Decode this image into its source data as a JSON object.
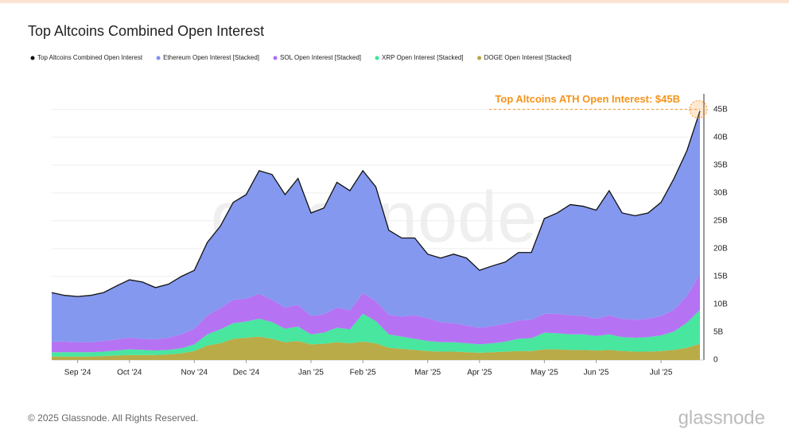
{
  "chart_data": {
    "type": "stacked-area",
    "title": "Top Altcoins Combined Open Interest",
    "categories": [
      null,
      null,
      "Sep '24",
      null,
      null,
      null,
      "Oct '24",
      null,
      null,
      null,
      null,
      "Nov '24",
      null,
      null,
      null,
      "Dec '24",
      null,
      null,
      null,
      null,
      "Jan '25",
      null,
      null,
      null,
      "Feb '25",
      null,
      null,
      null,
      null,
      "Mar '25",
      null,
      null,
      null,
      "Apr '25",
      null,
      null,
      null,
      null,
      "May '25",
      null,
      null,
      null,
      "Jun '25",
      null,
      null,
      null,
      null,
      "Jul '25",
      null,
      null,
      null
    ],
    "series": [
      {
        "name": "Top Altcoins Combined Open Interest",
        "color": "#111111",
        "kind": "line",
        "values": [
          12.1,
          11.6,
          11.4,
          11.6,
          12.1,
          13.3,
          14.4,
          14,
          13,
          13.6,
          15,
          16.1,
          21.1,
          24,
          28.3,
          29.7,
          34,
          33.3,
          29.7,
          32.6,
          26.4,
          27.3,
          31.9,
          30.4,
          34,
          31.1,
          23.3,
          21.9,
          21.9,
          19,
          18.3,
          19,
          18.3,
          16.1,
          16.9,
          17.6,
          19.3,
          19.3,
          25.4,
          26.4,
          27.9,
          27.6,
          26.9,
          30.4,
          26.4,
          25.9,
          26.4,
          28.3,
          32.6,
          37.6,
          44.7
        ]
      },
      {
        "name": "Ethereum Open Interest [Stacked]",
        "color": "#7d92ee",
        "kind": "area",
        "values": [
          8.8,
          8.3,
          8.2,
          8.4,
          8.7,
          9.6,
          10.4,
          10.2,
          9.3,
          9.6,
          10.4,
          10.5,
          13.1,
          14.7,
          17.5,
          18.7,
          22.1,
          22.5,
          20.3,
          22.7,
          18.5,
          19.1,
          22.5,
          21.5,
          22,
          20.5,
          15.2,
          14.1,
          13.9,
          11.5,
          11.5,
          12.4,
          12.1,
          10.3,
          10.8,
          11.1,
          12.2,
          12.1,
          17.1,
          18.1,
          19.9,
          19.7,
          19.5,
          22.4,
          19,
          18.7,
          19,
          20.4,
          23.6,
          26.1,
          29.3
        ]
      },
      {
        "name": "SOL Open Interest [Stacked]",
        "color": "#b16cf2",
        "kind": "area",
        "values": [
          1.9,
          1.9,
          1.8,
          1.8,
          1.9,
          2.0,
          2.1,
          2.0,
          2.0,
          2.2,
          2.5,
          2.8,
          3.4,
          3.8,
          4.2,
          4.1,
          4.5,
          4.0,
          3.8,
          3.9,
          3.3,
          3.3,
          3.6,
          3.4,
          3.7,
          3.6,
          3.5,
          3.6,
          4.2,
          4.1,
          3.6,
          3.4,
          3.2,
          3.0,
          3.1,
          3.2,
          3.3,
          3.3,
          3.4,
          3.5,
          3.4,
          3.3,
          3.1,
          3.4,
          3.3,
          3.2,
          3.3,
          3.5,
          3.9,
          4.8,
          6.4
        ]
      },
      {
        "name": "XRP Open Interest [Stacked]",
        "color": "#3ee59a",
        "kind": "area",
        "values": [
          0.8,
          0.8,
          0.8,
          0.8,
          0.8,
          0.9,
          1.0,
          0.9,
          0.8,
          0.8,
          0.9,
          1.2,
          2.0,
          2.5,
          2.8,
          2.9,
          3.2,
          3.0,
          2.4,
          2.6,
          1.8,
          2.0,
          2.6,
          2.5,
          5.0,
          4.0,
          2.4,
          2.2,
          2.0,
          1.8,
          1.7,
          1.7,
          1.6,
          1.5,
          1.6,
          1.8,
          2.2,
          2.3,
          3.0,
          2.9,
          2.8,
          2.8,
          2.6,
          2.8,
          2.5,
          2.5,
          2.6,
          2.8,
          3.3,
          4.5,
          6.1
        ]
      },
      {
        "name": "DOGE Open Interest [Stacked]",
        "color": "#b5a73d",
        "kind": "area",
        "values": [
          0.6,
          0.6,
          0.6,
          0.6,
          0.7,
          0.8,
          0.9,
          0.9,
          0.9,
          1.0,
          1.2,
          1.6,
          2.6,
          3.0,
          3.8,
          4.0,
          4.2,
          3.8,
          3.2,
          3.4,
          2.8,
          2.9,
          3.2,
          3.0,
          3.3,
          3.0,
          2.2,
          2.0,
          1.8,
          1.6,
          1.5,
          1.5,
          1.4,
          1.3,
          1.4,
          1.5,
          1.6,
          1.6,
          1.9,
          1.9,
          1.8,
          1.8,
          1.7,
          1.8,
          1.6,
          1.5,
          1.5,
          1.6,
          1.8,
          2.2,
          2.9
        ]
      }
    ],
    "ylim": [
      0,
      47.8
    ],
    "yticks": [
      0,
      {
        "value": 5,
        "label": "5B"
      },
      {
        "value": 10,
        "label": "10B"
      },
      {
        "value": 15,
        "label": "15B"
      },
      {
        "value": 20,
        "label": "20B"
      },
      {
        "value": 25,
        "label": "25B"
      },
      {
        "value": 30,
        "label": "30B"
      },
      {
        "value": 35,
        "label": "35B"
      },
      {
        "value": 40,
        "label": "40B"
      },
      {
        "value": 45,
        "label": "45B"
      }
    ],
    "grid": true,
    "legend": "top",
    "annotation": {
      "text": "Top Altcoins ATH Open Interest: $45B",
      "value": 45,
      "color": "#f7931a"
    },
    "watermark": "glassnode"
  },
  "footer": {
    "copyright": "© 2025 Glassnode. All Rights Reserved.",
    "logo": "glassnode"
  }
}
